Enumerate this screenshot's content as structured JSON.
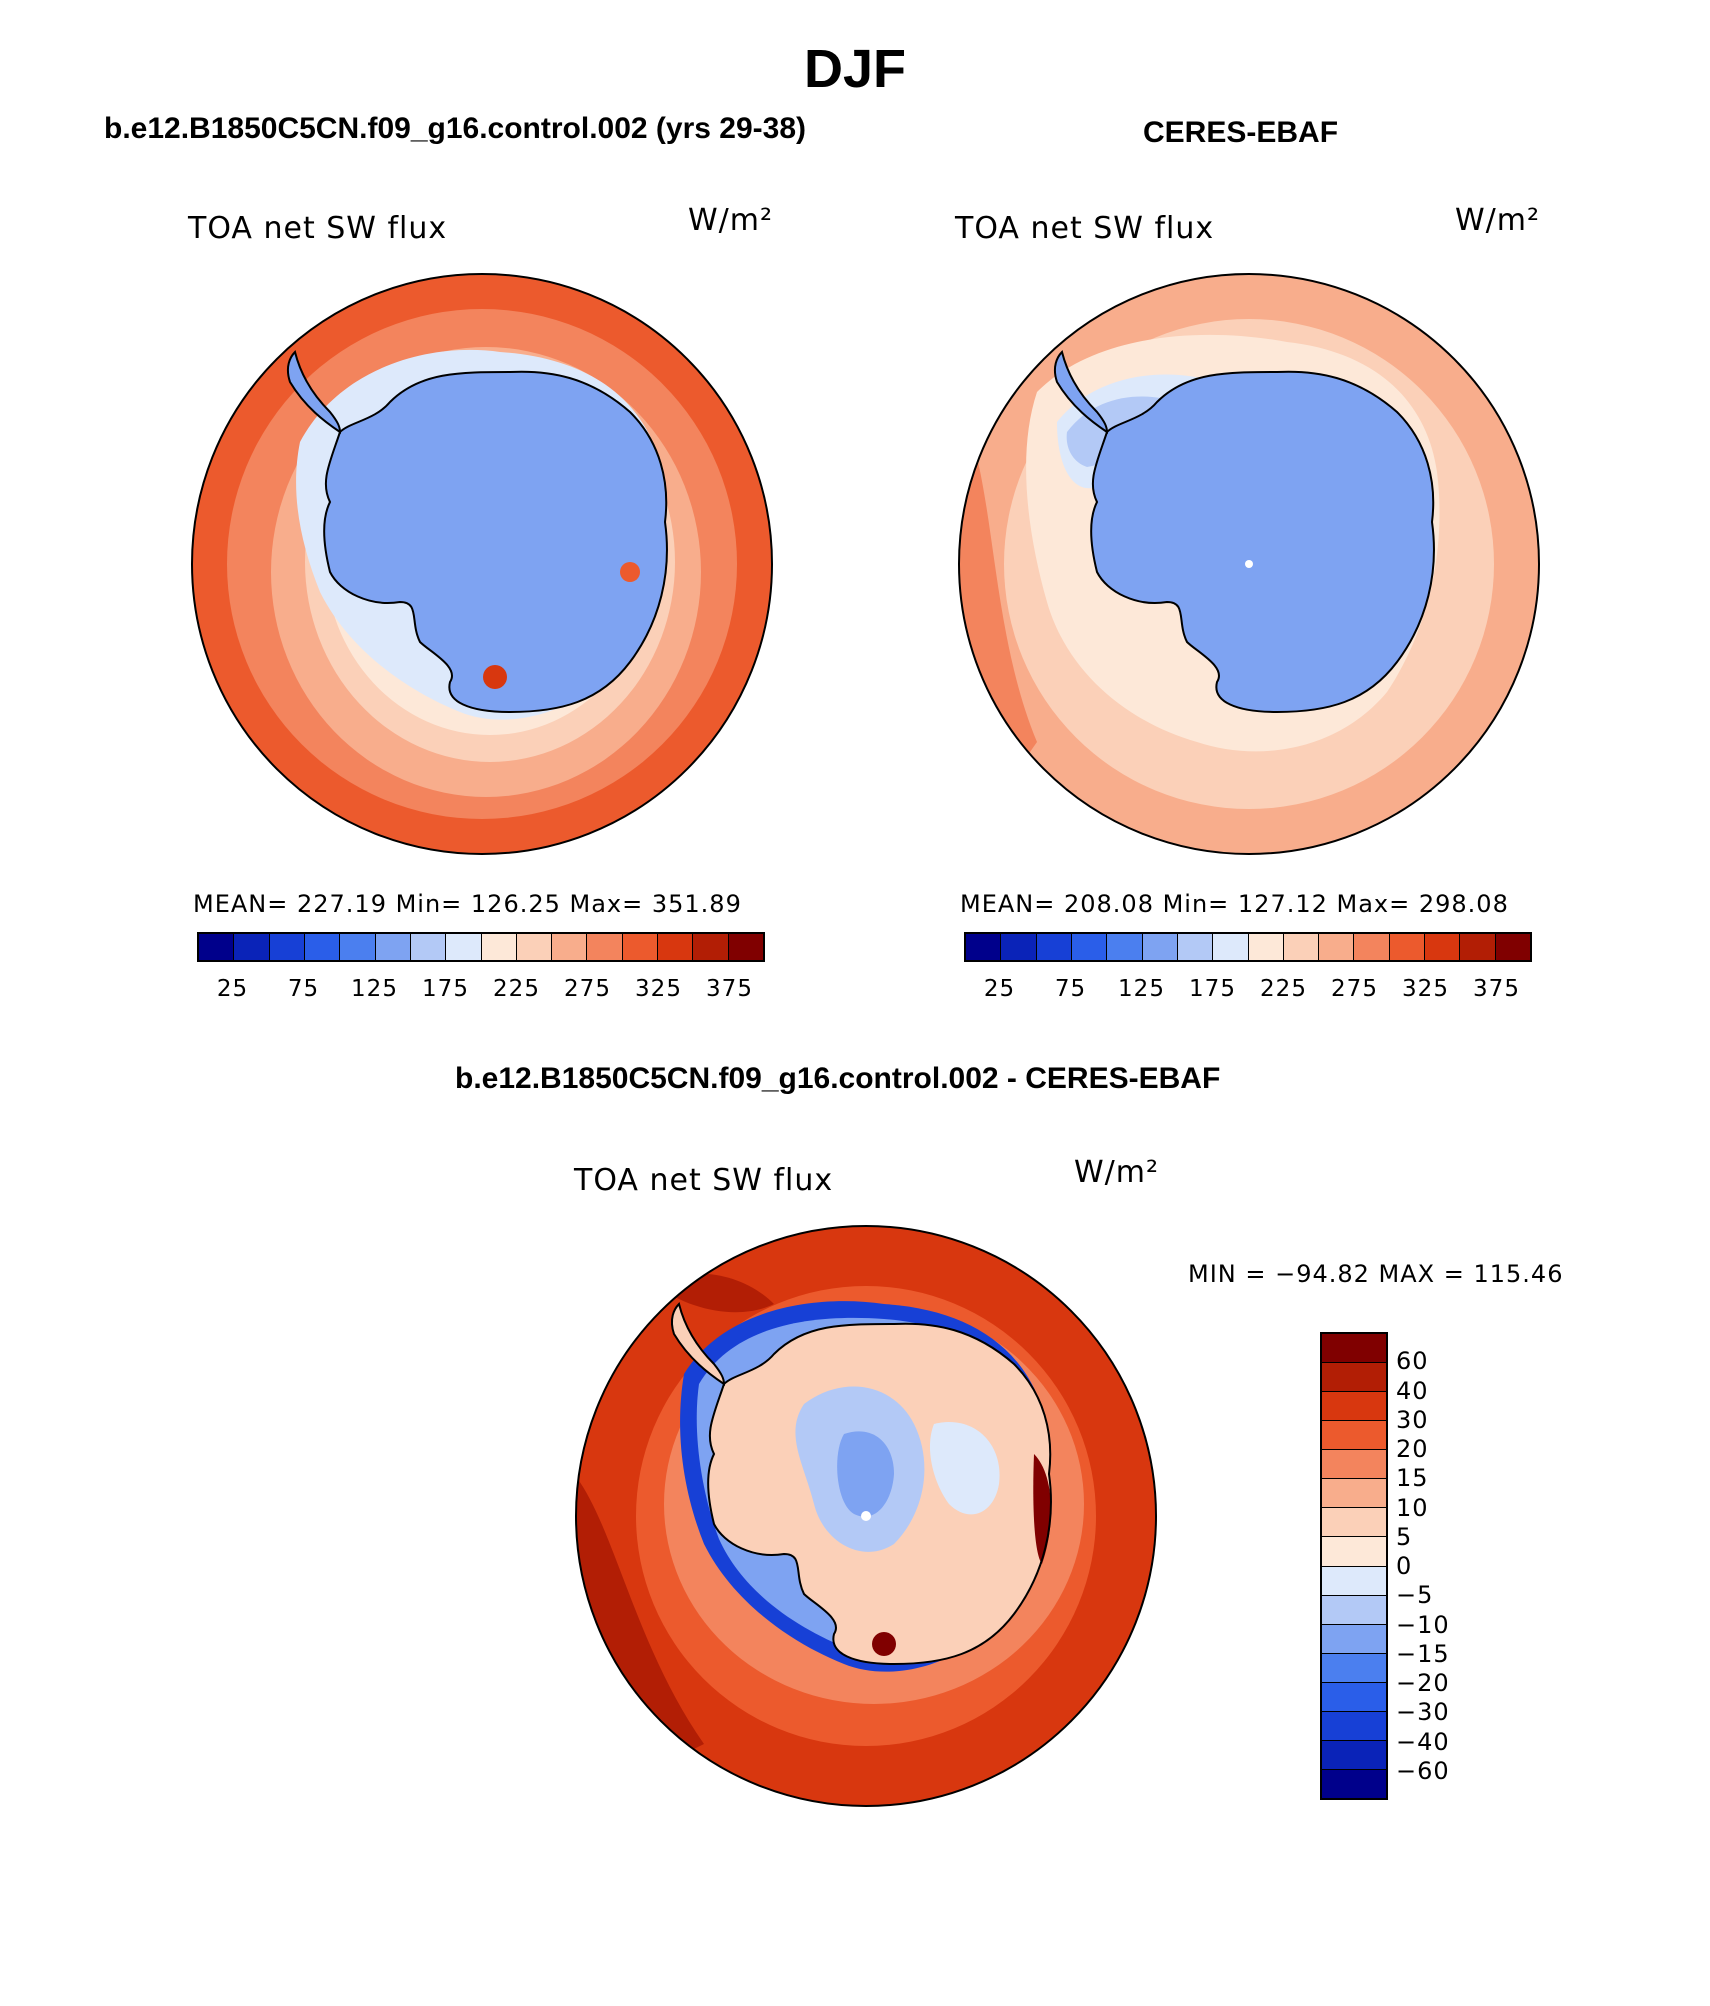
{
  "main_title": "DJF",
  "panels": [
    {
      "title": "b.e12.B1850C5CN.f09_g16.control.002 (yrs 29-38)",
      "variable": "TOA net SW flux",
      "units": "W/m²",
      "stats": "MEAN= 227.19   Min= 126.25   Max= 351.89"
    },
    {
      "title": "CERES-EBAF",
      "variable": "TOA net SW flux",
      "units": "W/m²",
      "stats": "MEAN= 208.08   Min= 127.12   Max= 298.08"
    },
    {
      "title": "b.e12.B1850C5CN.f09_g16.control.002 - CERES-EBAF",
      "variable": "TOA net SW flux",
      "units": "W/m²",
      "stats": "MIN = −94.82  MAX = 115.46"
    }
  ],
  "colorbar_abs": {
    "colors": [
      "#00008b",
      "#0a23b8",
      "#1740d6",
      "#2a5ee9",
      "#4b7fef",
      "#7ea3f2",
      "#b3c9f6",
      "#dde9fb",
      "#fde8d8",
      "#fbd0b8",
      "#f8ad8c",
      "#f3845d",
      "#ec5a2d",
      "#d8370f",
      "#b21e05",
      "#800000"
    ],
    "ticks": [
      "25",
      "75",
      "125",
      "175",
      "225",
      "275",
      "325",
      "375"
    ]
  },
  "colorbar_diff": {
    "colors": [
      "#800000",
      "#b21e05",
      "#d8370f",
      "#ec5a2d",
      "#f3845d",
      "#f8ad8c",
      "#fbd0b8",
      "#fde8d8",
      "#dde9fb",
      "#b3c9f6",
      "#7ea3f2",
      "#4b7fef",
      "#2a5ee9",
      "#1740d6",
      "#0a23b8",
      "#00008b"
    ],
    "ticks": [
      "60",
      "40",
      "30",
      "20",
      "15",
      "10",
      "5",
      "0",
      "−5",
      "−10",
      "−15",
      "−20",
      "−30",
      "−40",
      "−60"
    ]
  },
  "chart_data": [
    {
      "type": "heatmap",
      "title": "b.e12.B1850C5CN.f09_g16.control.002 (yrs 29-38)",
      "variable": "TOA net SW flux",
      "units": "W/m²",
      "projection": "south-polar stereographic",
      "season": "DJF",
      "mean": 227.19,
      "min": 126.25,
      "max": 351.89,
      "levels": [
        25,
        75,
        125,
        175,
        225,
        275,
        325,
        375
      ]
    },
    {
      "type": "heatmap",
      "title": "CERES-EBAF",
      "variable": "TOA net SW flux",
      "units": "W/m²",
      "projection": "south-polar stereographic",
      "season": "DJF",
      "mean": 208.08,
      "min": 127.12,
      "max": 298.08,
      "levels": [
        25,
        75,
        125,
        175,
        225,
        275,
        325,
        375
      ]
    },
    {
      "type": "heatmap",
      "title": "b.e12.B1850C5CN.f09_g16.control.002 - CERES-EBAF",
      "variable": "TOA net SW flux",
      "units": "W/m²",
      "projection": "south-polar stereographic",
      "season": "DJF",
      "min": -94.82,
      "max": 115.46,
      "levels": [
        -60,
        -40,
        -30,
        -20,
        -15,
        -10,
        -5,
        0,
        5,
        10,
        15,
        20,
        30,
        40,
        60
      ]
    }
  ]
}
